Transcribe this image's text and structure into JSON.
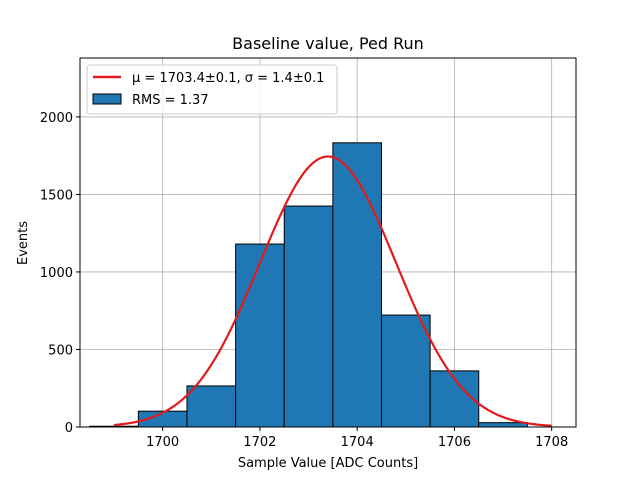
{
  "chart_data": {
    "type": "bar",
    "title": "Baseline value, Ped Run",
    "xlabel": "Sample Value [ADC Counts]",
    "ylabel": "Events",
    "xlim": [
      1698.3,
      1708.5
    ],
    "ylim": [
      0,
      2380
    ],
    "grid": true,
    "legend_position": "top-left",
    "xticks": [
      1700,
      1702,
      1704,
      1706,
      1708
    ],
    "yticks": [
      0,
      500,
      1000,
      1500,
      2000
    ],
    "bin_width": 1,
    "bins": [
      {
        "center": 1699,
        "value": 5
      },
      {
        "center": 1700,
        "value": 102
      },
      {
        "center": 1701,
        "value": 265
      },
      {
        "center": 1702,
        "value": 1180
      },
      {
        "center": 1703,
        "value": 1425
      },
      {
        "center": 1704,
        "value": 1833
      },
      {
        "center": 1705,
        "value": 722
      },
      {
        "center": 1706,
        "value": 362
      },
      {
        "center": 1707,
        "value": 28
      }
    ],
    "fit": {
      "type": "gaussian",
      "mu": 1703.4,
      "sigma": 1.4,
      "amplitude": 1745,
      "x_range": [
        1699,
        1708
      ]
    },
    "legend": [
      {
        "label": "μ = 1703.4±0.1, σ = 1.4±0.1",
        "kind": "line",
        "color": "#e31a1c"
      },
      {
        "label": "RMS = 1.37",
        "kind": "patch",
        "color": "#1f77b4"
      }
    ],
    "colors": {
      "bar_fill": "#1f77b4",
      "bar_edge": "#000000",
      "fit_line": "#e31a1c",
      "grid": "#b0b0b0"
    }
  }
}
